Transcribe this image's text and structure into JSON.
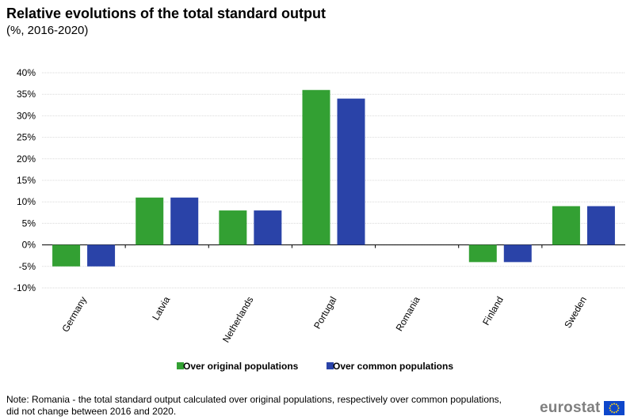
{
  "header": {
    "title": "Relative evolutions of the total standard output",
    "subtitle": "(%, 2016-2020)"
  },
  "note": "Note: Romania - the total standard output calculated over original populations, respectively over common populations, did not change between 2016 and 2020.",
  "logo": {
    "text": "eurostat",
    "flag_icon": "eu-flag-icon"
  },
  "colors": {
    "original": "#33a033",
    "common": "#2a43a8",
    "grid": "#d9d9d9"
  },
  "chart_data": {
    "type": "bar",
    "categories": [
      "Germany",
      "Latvia",
      "Netherlands",
      "Portugal",
      "Romania",
      "Finland",
      "Sweden"
    ],
    "series": [
      {
        "name": "Over original populations",
        "values": [
          -5,
          11,
          8,
          36,
          0,
          -4,
          9
        ]
      },
      {
        "name": "Over common populations",
        "values": [
          -5,
          11,
          8,
          34,
          0,
          -4,
          9
        ]
      }
    ],
    "yticks": [
      "40%",
      "35%",
      "30%",
      "25%",
      "20%",
      "15%",
      "10%",
      "5%",
      "0%",
      "-5%",
      "-10%"
    ],
    "ylim": [
      -10,
      40
    ],
    "grid": true,
    "legend_position": "bottom"
  }
}
